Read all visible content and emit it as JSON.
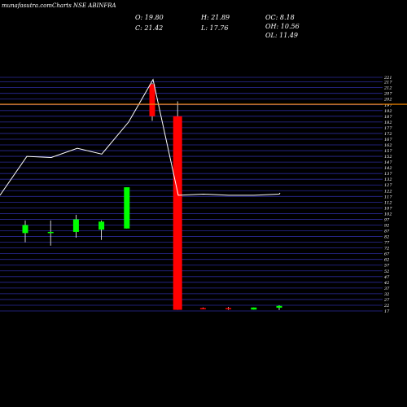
{
  "brand": {
    "site": "munafasutra.com",
    "title": "Charts NSE ABINFRA"
  },
  "ohlc_stats": {
    "o": "O: 19.80",
    "c": "C: 21.42",
    "h": "H: 21.89",
    "l": "L: 17.76",
    "oc": "OC: 8.18",
    "oh": "OH: 10.56",
    "ol": "OL: 11.49"
  },
  "colors": {
    "background": "#000000",
    "grid": "#2b2b9a",
    "up": "#00ff00",
    "down": "#ff0000",
    "volume_line": "#ffffff",
    "price_line": "#ff8c00"
  },
  "chart_data": {
    "type": "candlestick",
    "title": "Charts NSE ABINFRA",
    "y_ticks": [
      221,
      217,
      212,
      207,
      202,
      197,
      192,
      187,
      182,
      177,
      172,
      167,
      162,
      157,
      152,
      147,
      142,
      137,
      132,
      127,
      122,
      117,
      112,
      107,
      102,
      97,
      92,
      87,
      82,
      77,
      72,
      67,
      62,
      57,
      52,
      47,
      42,
      37,
      32,
      27,
      22,
      17
    ],
    "ylim": [
      17,
      221
    ],
    "grid": true,
    "current_price_line": 197.5,
    "candles": [
      {
        "open": 85,
        "close": 92,
        "high": 96,
        "low": 77
      },
      {
        "open": 86,
        "close": 86,
        "high": 96,
        "low": 74
      },
      {
        "open": 86,
        "close": 97,
        "high": 101,
        "low": 81
      },
      {
        "open": 88,
        "close": 95,
        "high": 96,
        "low": 79
      },
      {
        "open": 89,
        "close": 125,
        "high": 125,
        "low": 89
      },
      {
        "open": 215,
        "close": 187,
        "high": 216,
        "low": 183
      },
      {
        "open": 187,
        "close": 18,
        "high": 200,
        "low": 18
      },
      {
        "open": 19.5,
        "close": 19,
        "high": 20,
        "low": 18.5
      },
      {
        "open": 19.5,
        "close": 18.5,
        "high": 20.5,
        "low": 18
      },
      {
        "open": 18.2,
        "close": 20,
        "high": 20,
        "low": 18.2
      },
      {
        "open": 19.8,
        "close": 21.42,
        "high": 21.89,
        "low": 17.76
      }
    ],
    "volume_line": [
      118,
      152,
      151,
      159,
      154,
      182,
      219,
      118,
      119,
      118,
      118,
      119,
      120
    ]
  }
}
